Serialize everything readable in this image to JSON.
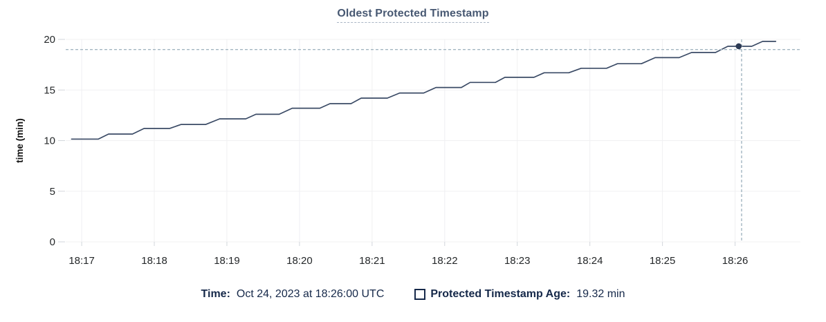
{
  "header": {
    "title": "Oldest Protected Timestamp"
  },
  "chart_data": {
    "type": "line",
    "title": "Oldest Protected Timestamp",
    "xlabel": "",
    "ylabel": "time (min)",
    "ylim": [
      0,
      20
    ],
    "yticks": [
      0,
      5,
      10,
      15,
      20
    ],
    "xlim_minutes_after_1817": [
      -0.22,
      9.9
    ],
    "xticks": [
      {
        "t": 0,
        "label": "18:17"
      },
      {
        "t": 1,
        "label": "18:18"
      },
      {
        "t": 2,
        "label": "18:19"
      },
      {
        "t": 3,
        "label": "18:20"
      },
      {
        "t": 4,
        "label": "18:21"
      },
      {
        "t": 5,
        "label": "18:22"
      },
      {
        "t": 6,
        "label": "18:23"
      },
      {
        "t": 7,
        "label": "18:24"
      },
      {
        "t": 8,
        "label": "18:25"
      },
      {
        "t": 9,
        "label": "18:26"
      }
    ],
    "grid": true,
    "legend_position": "bottom",
    "series": [
      {
        "name": "Protected Timestamp Age",
        "points": [
          [
            -0.14,
            10.15
          ],
          [
            0.23,
            10.15
          ],
          [
            0.37,
            10.65
          ],
          [
            0.7,
            10.65
          ],
          [
            0.86,
            11.2
          ],
          [
            1.21,
            11.2
          ],
          [
            1.37,
            11.6
          ],
          [
            1.71,
            11.6
          ],
          [
            1.9,
            12.15
          ],
          [
            2.26,
            12.15
          ],
          [
            2.4,
            12.6
          ],
          [
            2.72,
            12.6
          ],
          [
            2.9,
            13.2
          ],
          [
            3.28,
            13.2
          ],
          [
            3.42,
            13.65
          ],
          [
            3.71,
            13.65
          ],
          [
            3.85,
            14.2
          ],
          [
            4.21,
            14.2
          ],
          [
            4.38,
            14.7
          ],
          [
            4.71,
            14.7
          ],
          [
            4.88,
            15.25
          ],
          [
            5.23,
            15.25
          ],
          [
            5.35,
            15.75
          ],
          [
            5.7,
            15.75
          ],
          [
            5.83,
            16.25
          ],
          [
            6.23,
            16.25
          ],
          [
            6.37,
            16.7
          ],
          [
            6.71,
            16.7
          ],
          [
            6.88,
            17.15
          ],
          [
            7.23,
            17.15
          ],
          [
            7.38,
            17.6
          ],
          [
            7.71,
            17.6
          ],
          [
            7.9,
            18.2
          ],
          [
            8.23,
            18.2
          ],
          [
            8.4,
            18.7
          ],
          [
            8.73,
            18.7
          ],
          [
            8.9,
            19.32
          ],
          [
            9.23,
            19.32
          ],
          [
            9.38,
            19.8
          ],
          [
            9.56,
            19.8
          ]
        ]
      }
    ],
    "crosshair": {
      "x": 9.09,
      "y": 19.0
    },
    "highlight_point": {
      "x": 9.05,
      "y": 19.32
    }
  },
  "hover_legend": {
    "time_label": "Time:",
    "time_value": "Oct 24, 2023 at 18:26:00 UTC",
    "series_label": "Protected Timestamp Age:",
    "series_value": "19.32 min"
  },
  "colors": {
    "title": "#475872",
    "line": "#3a4a65",
    "dot": "#2c3a54",
    "grid": "#f0f0f2",
    "tick": "#d2d6db",
    "tick_label": "#242729",
    "axis_title": "#111111",
    "crosshair": "#a2b5c1",
    "legend_text": "#152849"
  }
}
